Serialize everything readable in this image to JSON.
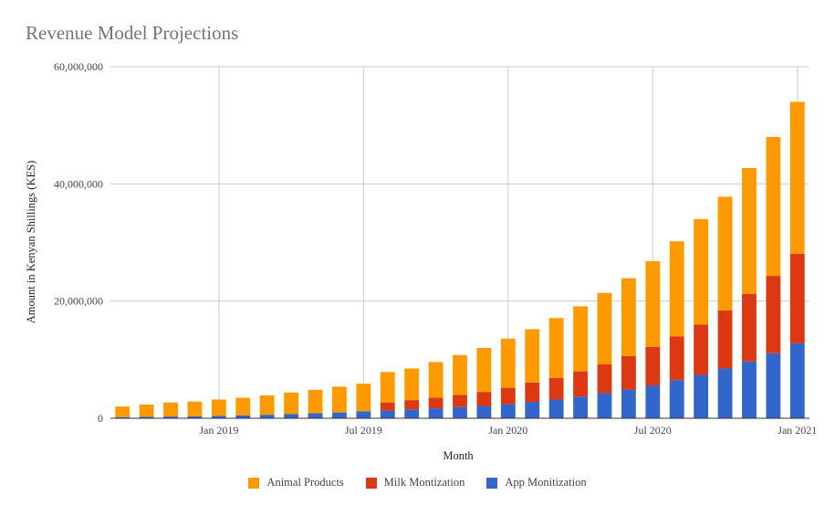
{
  "chart_data": {
    "type": "bar",
    "stacked": true,
    "title": "Revenue Model Projections",
    "xlabel": "Month",
    "ylabel": "Amount in Kenyan Shillings (KES)",
    "ylim": [
      0,
      60000000
    ],
    "yticks": [
      "0",
      "20,000,000",
      "40,000,000",
      "60,000,000"
    ],
    "ytick_values": [
      0,
      20000000,
      40000000,
      60000000
    ],
    "xticks": [
      {
        "label": "Jan 2019",
        "index": 4
      },
      {
        "label": "Jul 2019",
        "index": 10
      },
      {
        "label": "Jan 2020",
        "index": 16
      },
      {
        "label": "Jul 2020",
        "index": 22
      },
      {
        "label": "Jan 2021",
        "index": 28
      }
    ],
    "categories": [
      "Sep 2018",
      "Oct 2018",
      "Nov 2018",
      "Dec 2018",
      "Jan 2019",
      "Feb 2019",
      "Mar 2019",
      "Apr 2019",
      "May 2019",
      "Jun 2019",
      "Jul 2019",
      "Aug 2019",
      "Sep 2019",
      "Oct 2019",
      "Nov 2019",
      "Dec 2019",
      "Jan 2020",
      "Feb 2020",
      "Mar 2020",
      "Apr 2020",
      "May 2020",
      "Jun 2020",
      "Jul 2020",
      "Aug 2020",
      "Sep 2020",
      "Oct 2020",
      "Nov 2020",
      "Dec 2020",
      "Jan 2021"
    ],
    "grid": true,
    "legend_position": "bottom",
    "series": [
      {
        "name": "App Monitization",
        "color": "#3366cc",
        "values": [
          200000,
          250000,
          300000,
          350000,
          400000,
          500000,
          600000,
          700000,
          850000,
          1000000,
          1200000,
          1300000,
          1500000,
          1700000,
          1900000,
          2100000,
          2400000,
          2800000,
          3200000,
          3700000,
          4300000,
          4900000,
          5600000,
          6500000,
          7400000,
          8500000,
          9700000,
          11100000,
          12800000
        ]
      },
      {
        "name": "Milk Montization",
        "color": "#dc3912",
        "values": [
          0,
          0,
          0,
          0,
          0,
          0,
          0,
          0,
          0,
          0,
          0,
          1400000,
          1600000,
          1800000,
          2100000,
          2400000,
          2800000,
          3300000,
          3700000,
          4300000,
          4900000,
          5700000,
          6600000,
          7500000,
          8600000,
          9900000,
          11500000,
          13200000,
          15300000
        ]
      },
      {
        "name": "Animal Products",
        "color": "#ff9900",
        "values": [
          1800000,
          2100000,
          2400000,
          2500000,
          2800000,
          3000000,
          3300000,
          3700000,
          4000000,
          4400000,
          4700000,
          5200000,
          5400000,
          6100000,
          6800000,
          7500000,
          8400000,
          9100000,
          10200000,
          11100000,
          12200000,
          13300000,
          14600000,
          16200000,
          18000000,
          19400000,
          21500000,
          23700000,
          25900000
        ]
      }
    ],
    "legend_order": [
      "Animal Products",
      "Milk Montization",
      "App Monitization"
    ]
  }
}
